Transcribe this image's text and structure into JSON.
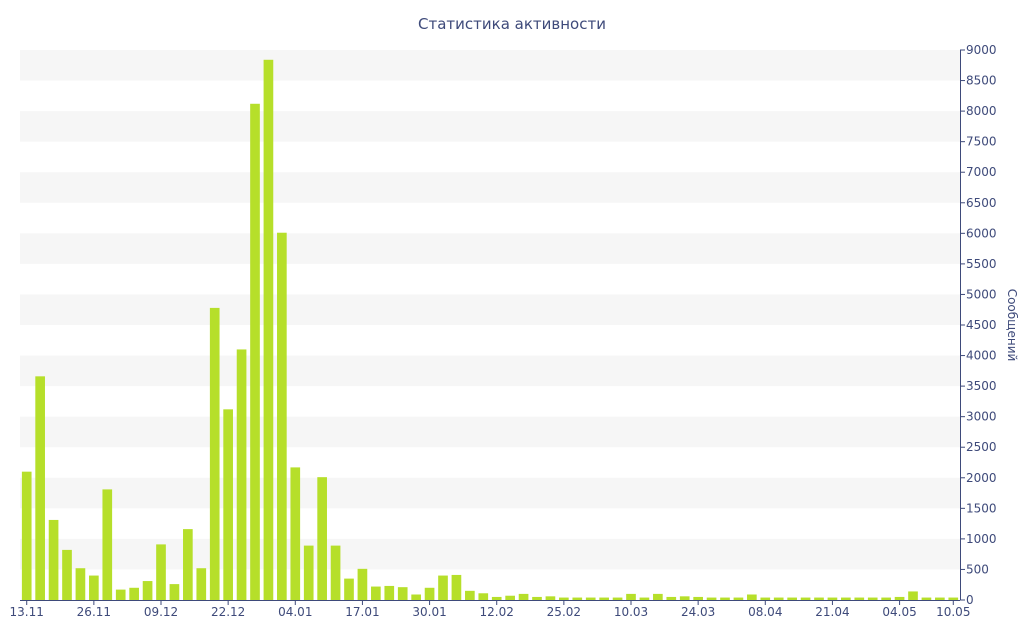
{
  "chart_data": {
    "type": "bar",
    "title": "Статистика активности",
    "xlabel": "",
    "ylabel": "Сообщений",
    "ylim": [
      0,
      9000
    ],
    "ytick_step": 500,
    "y_axis_side": "right",
    "x_tick_labels": [
      "13.11",
      "26.11",
      "09.12",
      "22.12",
      "04.01",
      "17.01",
      "30.01",
      "12.02",
      "25.02",
      "10.03",
      "24.03",
      "08.04",
      "21.04",
      "04.05",
      "10.05"
    ],
    "x_tick_bar_index": [
      0,
      5,
      10,
      15,
      20,
      25,
      30,
      35,
      40,
      45,
      50,
      55,
      60,
      65,
      69
    ],
    "bar_color": "#b6df2a",
    "band_color": "#f6f6f6",
    "axis_color": "#3e4a7a",
    "grid": "alternating horizontal bands",
    "values": [
      2100,
      3660,
      1310,
      820,
      520,
      400,
      1810,
      170,
      200,
      310,
      910,
      260,
      1160,
      520,
      4780,
      3120,
      4100,
      8120,
      8840,
      6010,
      2170,
      890,
      2010,
      890,
      350,
      510,
      220,
      230,
      210,
      90,
      200,
      400,
      410,
      150,
      110,
      50,
      70,
      100,
      50,
      60,
      40,
      40,
      40,
      40,
      40,
      100,
      40,
      100,
      50,
      60,
      50,
      40,
      40,
      40,
      90,
      40,
      40,
      40,
      40,
      40,
      40,
      40,
      40,
      40,
      40,
      50,
      140,
      40,
      40,
      40
    ]
  }
}
